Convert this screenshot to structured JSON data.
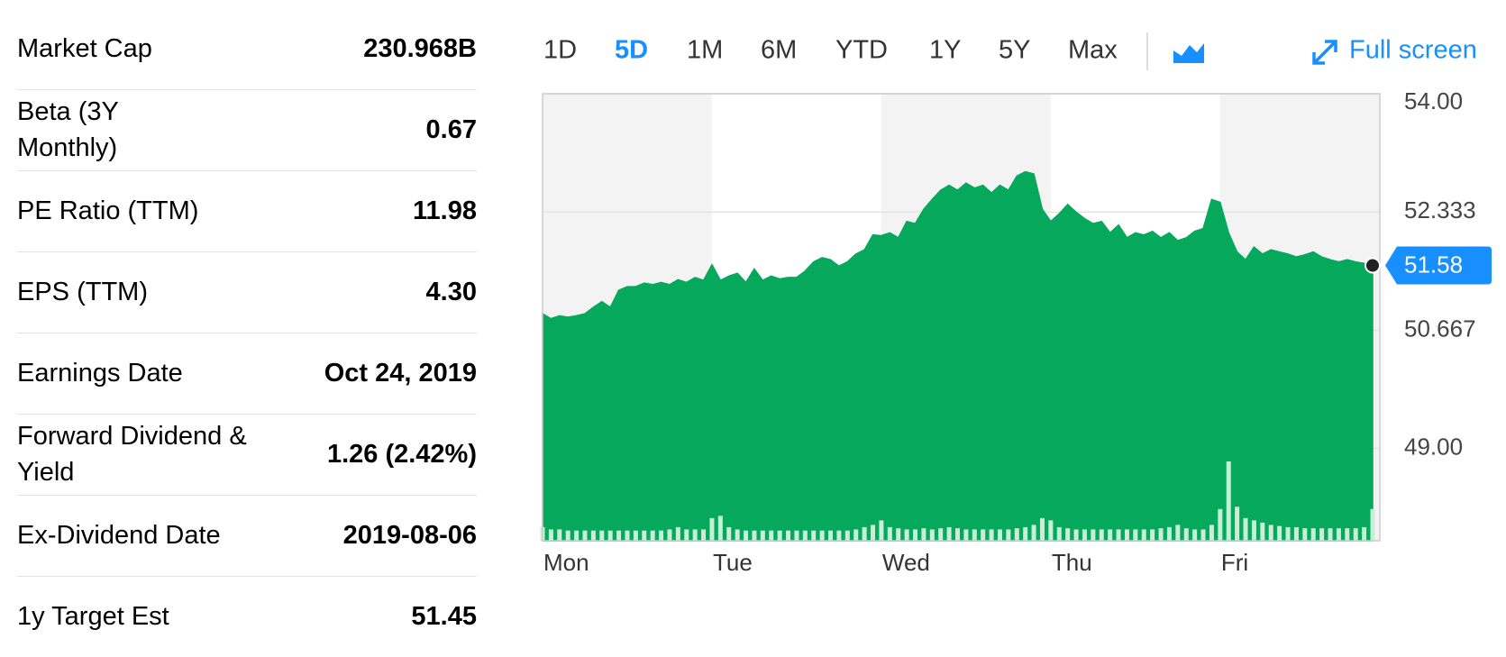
{
  "stats": {
    "rows": [
      {
        "label": "Market Cap",
        "value": "230.968B"
      },
      {
        "label": "Beta (3Y Monthly)",
        "value": "0.67"
      },
      {
        "label": "PE Ratio (TTM)",
        "value": "11.98"
      },
      {
        "label": "EPS (TTM)",
        "value": "4.30"
      },
      {
        "label": "Earnings Date",
        "value": "Oct 24, 2019"
      },
      {
        "label": "Forward Dividend & Yield",
        "value": "1.26 (2.42%)"
      },
      {
        "label": "Ex-Dividend Date",
        "value": "2019-08-06"
      },
      {
        "label": "1y Target Est",
        "value": "51.45"
      }
    ]
  },
  "range_buttons": {
    "options": [
      "1D",
      "5D",
      "1M",
      "6M",
      "YTD",
      "1Y",
      "5Y",
      "Max"
    ],
    "selected_index": 1
  },
  "full_screen": "Full screen",
  "chart_data": {
    "type": "area",
    "color": "#06a85c",
    "categories": [
      "Mon",
      "Tue",
      "Wed",
      "Thu",
      "Fri"
    ],
    "values": [
      [
        50.9,
        50.83,
        50.87,
        50.85,
        50.87,
        50.9,
        50.99,
        51.07,
        50.99,
        51.23,
        51.28,
        51.28,
        51.33,
        51.31,
        51.34,
        51.31,
        51.38,
        51.34,
        51.41,
        51.37
      ],
      [
        51.59,
        51.37,
        51.43,
        51.47,
        51.34,
        51.53,
        51.37,
        51.43,
        51.39,
        51.41,
        51.41,
        51.5,
        51.63,
        51.69,
        51.66,
        51.57,
        51.63,
        51.74,
        51.8,
        52.01
      ],
      [
        52.0,
        52.04,
        51.97,
        52.2,
        52.17,
        52.37,
        52.51,
        52.64,
        52.71,
        52.64,
        52.74,
        52.67,
        52.71,
        52.6,
        52.71,
        52.64,
        52.84,
        52.9,
        52.87,
        52.37
      ],
      [
        52.2,
        52.31,
        52.44,
        52.33,
        52.24,
        52.17,
        52.2,
        52.04,
        52.15,
        51.97,
        52.04,
        52.01,
        52.06,
        51.97,
        52.04,
        51.93,
        51.97,
        52.06,
        52.1,
        52.51
      ],
      [
        52.47,
        52.04,
        51.77,
        51.66,
        51.84,
        51.74,
        51.8,
        51.77,
        51.74,
        51.7,
        51.73,
        51.77,
        51.7,
        51.66,
        51.63,
        51.66,
        51.63,
        51.61,
        51.58
      ]
    ],
    "volume": [
      [
        12,
        10,
        10,
        9,
        9,
        9,
        9,
        9,
        9,
        9,
        9,
        9,
        9,
        9,
        9,
        10,
        12,
        10,
        10,
        10
      ],
      [
        20,
        22,
        12,
        10,
        9,
        9,
        9,
        9,
        9,
        9,
        9,
        9,
        9,
        9,
        9,
        9,
        9,
        10,
        12,
        14
      ],
      [
        18,
        12,
        11,
        10,
        10,
        11,
        10,
        11,
        12,
        11,
        10,
        10,
        10,
        10,
        10,
        10,
        11,
        12,
        14,
        20
      ],
      [
        18,
        12,
        11,
        10,
        10,
        10,
        10,
        10,
        10,
        10,
        10,
        10,
        10,
        11,
        12,
        14,
        11,
        10,
        10,
        14
      ],
      [
        28,
        70,
        30,
        20,
        18,
        16,
        14,
        13,
        12,
        12,
        11,
        11,
        11,
        11,
        11,
        11,
        11,
        12,
        28
      ]
    ],
    "ylim": [
      47.7,
      54.0
    ],
    "yticks": [
      {
        "value": 54,
        "label": "54.00"
      },
      {
        "value": 52.333,
        "label": "52.333"
      },
      {
        "value": 50.667,
        "label": "50.667"
      },
      {
        "value": 49,
        "label": "49.00"
      }
    ],
    "grid": true
  }
}
